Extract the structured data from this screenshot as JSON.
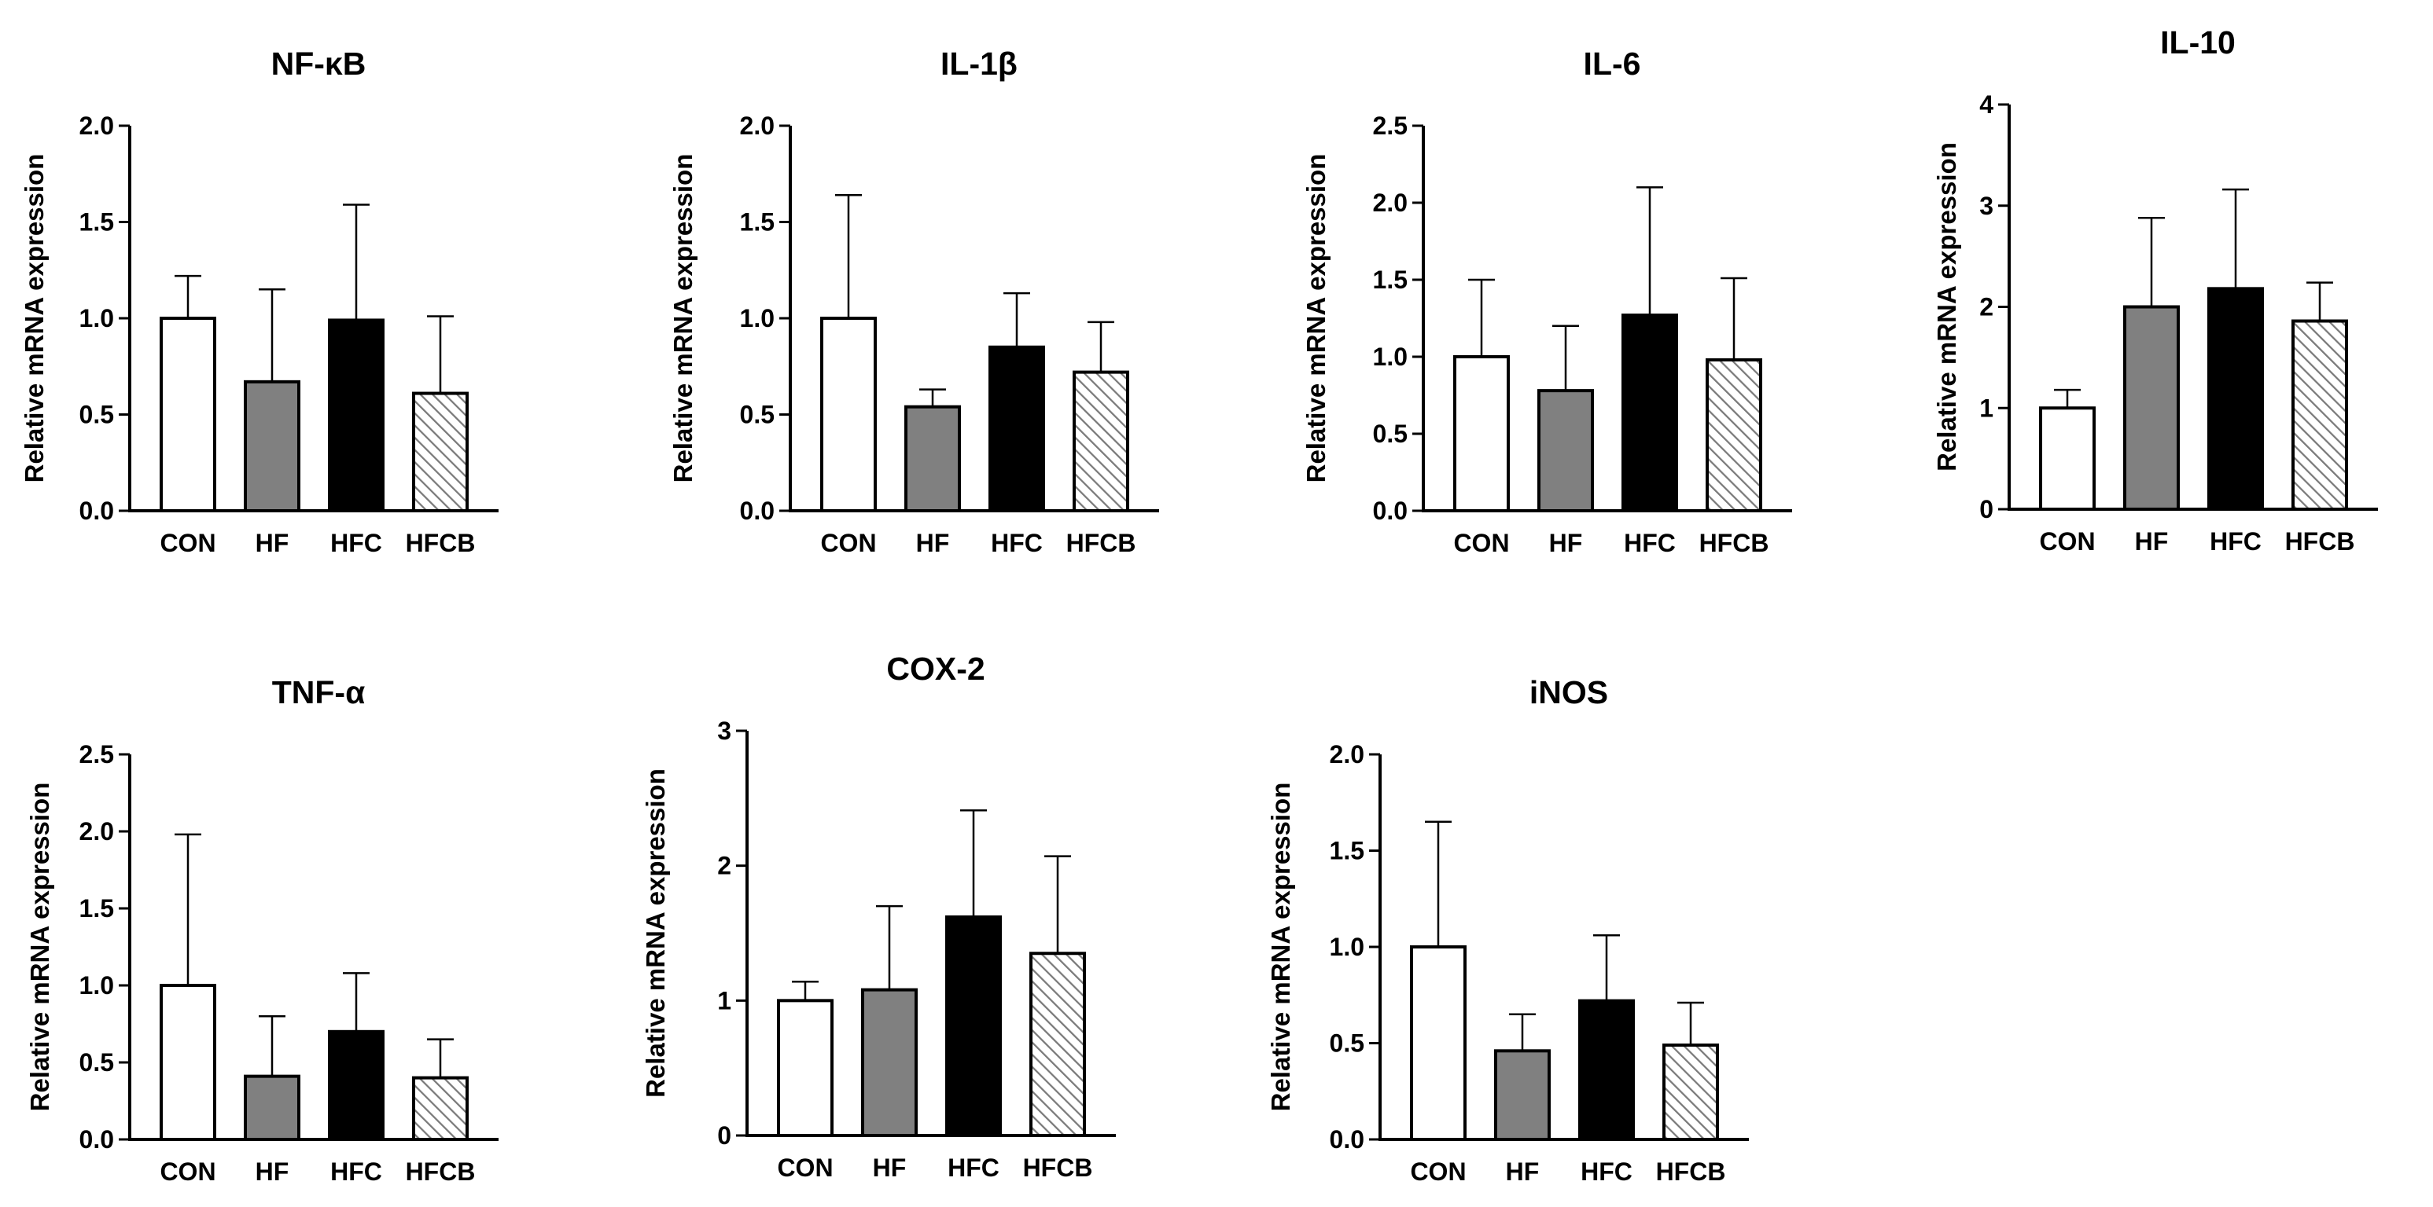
{
  "figure": {
    "ylabel": "Relative mRNA expression",
    "categories": [
      "CON",
      "HF",
      "HFC",
      "HFCB"
    ],
    "bar_styles": [
      "white",
      "gray",
      "black",
      "hatched"
    ],
    "colors": {
      "gray": "#808080",
      "black": "#000000",
      "white": "#ffffff",
      "hatch": "#7a7a7a"
    }
  },
  "chart_data": [
    {
      "type": "bar",
      "title": "NF-κB",
      "xlabel": "",
      "ylabel": "Relative mRNA expression",
      "categories": [
        "CON",
        "HF",
        "HFC",
        "HFCB"
      ],
      "values": [
        1.0,
        0.67,
        0.99,
        0.61
      ],
      "errors": [
        0.22,
        0.48,
        0.6,
        0.4
      ],
      "ylim": [
        0,
        2.0
      ],
      "yticks": [
        0.0,
        0.5,
        1.0,
        1.5,
        2.0
      ],
      "ytick_labels": [
        "0.0",
        "0.5",
        "1.0",
        "1.5",
        "2.0"
      ]
    },
    {
      "type": "bar",
      "title": "IL-1β",
      "xlabel": "",
      "ylabel": "Relative mRNA expression",
      "categories": [
        "CON",
        "HF",
        "HFC",
        "HFCB"
      ],
      "values": [
        1.0,
        0.54,
        0.85,
        0.72
      ],
      "errors": [
        0.64,
        0.09,
        0.28,
        0.26
      ],
      "ylim": [
        0,
        2.0
      ],
      "yticks": [
        0.0,
        0.5,
        1.0,
        1.5,
        2.0
      ],
      "ytick_labels": [
        "0.0",
        "0.5",
        "1.0",
        "1.5",
        "2.0"
      ]
    },
    {
      "type": "bar",
      "title": "IL-6",
      "xlabel": "",
      "ylabel": "Relative mRNA expression",
      "categories": [
        "CON",
        "HF",
        "HFC",
        "HFCB"
      ],
      "values": [
        1.0,
        0.78,
        1.27,
        0.98
      ],
      "errors": [
        0.5,
        0.42,
        0.83,
        0.53
      ],
      "ylim": [
        0,
        2.5
      ],
      "yticks": [
        0.0,
        0.5,
        1.0,
        1.5,
        2.0,
        2.5
      ],
      "ytick_labels": [
        "0.0",
        "0.5",
        "1.0",
        "1.5",
        "2.0",
        "2.5"
      ]
    },
    {
      "type": "bar",
      "title": "IL-10",
      "xlabel": "",
      "ylabel": "Relative mRNA expression",
      "categories": [
        "CON",
        "HF",
        "HFC",
        "HFCB"
      ],
      "values": [
        1.0,
        2.0,
        2.18,
        1.86
      ],
      "errors": [
        0.18,
        0.88,
        0.98,
        0.38
      ],
      "ylim": [
        0,
        4
      ],
      "yticks": [
        0,
        1,
        2,
        3,
        4
      ],
      "ytick_labels": [
        "0",
        "1",
        "2",
        "3",
        "4"
      ]
    },
    {
      "type": "bar",
      "title": "TNF-α",
      "xlabel": "",
      "ylabel": "Relative mRNA expression",
      "categories": [
        "CON",
        "HF",
        "HFC",
        "HFCB"
      ],
      "values": [
        1.0,
        0.41,
        0.7,
        0.4
      ],
      "errors": [
        0.98,
        0.39,
        0.38,
        0.25
      ],
      "ylim": [
        0,
        2.5
      ],
      "yticks": [
        0.0,
        0.5,
        1.0,
        1.5,
        2.0,
        2.5
      ],
      "ytick_labels": [
        "0.0",
        "0.5",
        "1.0",
        "1.5",
        "2.0",
        "2.5"
      ]
    },
    {
      "type": "bar",
      "title": "COX-2",
      "xlabel": "",
      "ylabel": "Relative mRNA expression",
      "categories": [
        "CON",
        "HF",
        "HFC",
        "HFCB"
      ],
      "values": [
        1.0,
        1.08,
        1.62,
        1.35
      ],
      "errors": [
        0.14,
        0.62,
        0.79,
        0.72
      ],
      "ylim": [
        0,
        3
      ],
      "yticks": [
        0,
        1,
        2,
        3
      ],
      "ytick_labels": [
        "0",
        "1",
        "2",
        "3"
      ]
    },
    {
      "type": "bar",
      "title": "iNOS",
      "xlabel": "",
      "ylabel": "Relative mRNA expression",
      "categories": [
        "CON",
        "HF",
        "HFC",
        "HFCB"
      ],
      "values": [
        1.0,
        0.46,
        0.72,
        0.49
      ],
      "errors": [
        0.65,
        0.19,
        0.34,
        0.22
      ],
      "ylim": [
        0,
        2.0
      ],
      "yticks": [
        0.0,
        0.5,
        1.0,
        1.5,
        2.0
      ],
      "ytick_labels": [
        "0.0",
        "0.5",
        "1.0",
        "1.5",
        "2.0"
      ]
    }
  ]
}
